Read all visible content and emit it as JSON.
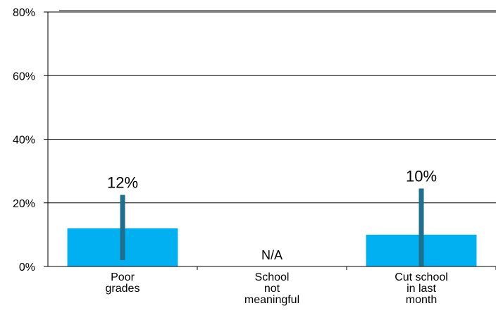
{
  "chart_data": {
    "type": "bar",
    "title": "",
    "xlabel": "",
    "ylabel": "",
    "ylim": [
      0,
      80
    ],
    "yticks": [
      0,
      20,
      40,
      60,
      80
    ],
    "ytick_labels": [
      "0%",
      "20%",
      "40%",
      "60%",
      "80%"
    ],
    "grid": true,
    "categories": [
      [
        "Poor",
        "grades"
      ],
      [
        "School",
        "not",
        "meaningful"
      ],
      [
        "Cut school",
        "in last",
        "month"
      ]
    ],
    "values": [
      12,
      null,
      10
    ],
    "data_labels": [
      "12%",
      "N/A",
      "10%"
    ],
    "error_bars": [
      {
        "low": 2,
        "high": 22.5
      },
      null,
      {
        "low": 0,
        "high": 24.5
      }
    ],
    "colors": {
      "bar": "#00b0f0",
      "error_bar": "#1f6e8c",
      "grid": "#000000",
      "axis": "#000000"
    }
  }
}
